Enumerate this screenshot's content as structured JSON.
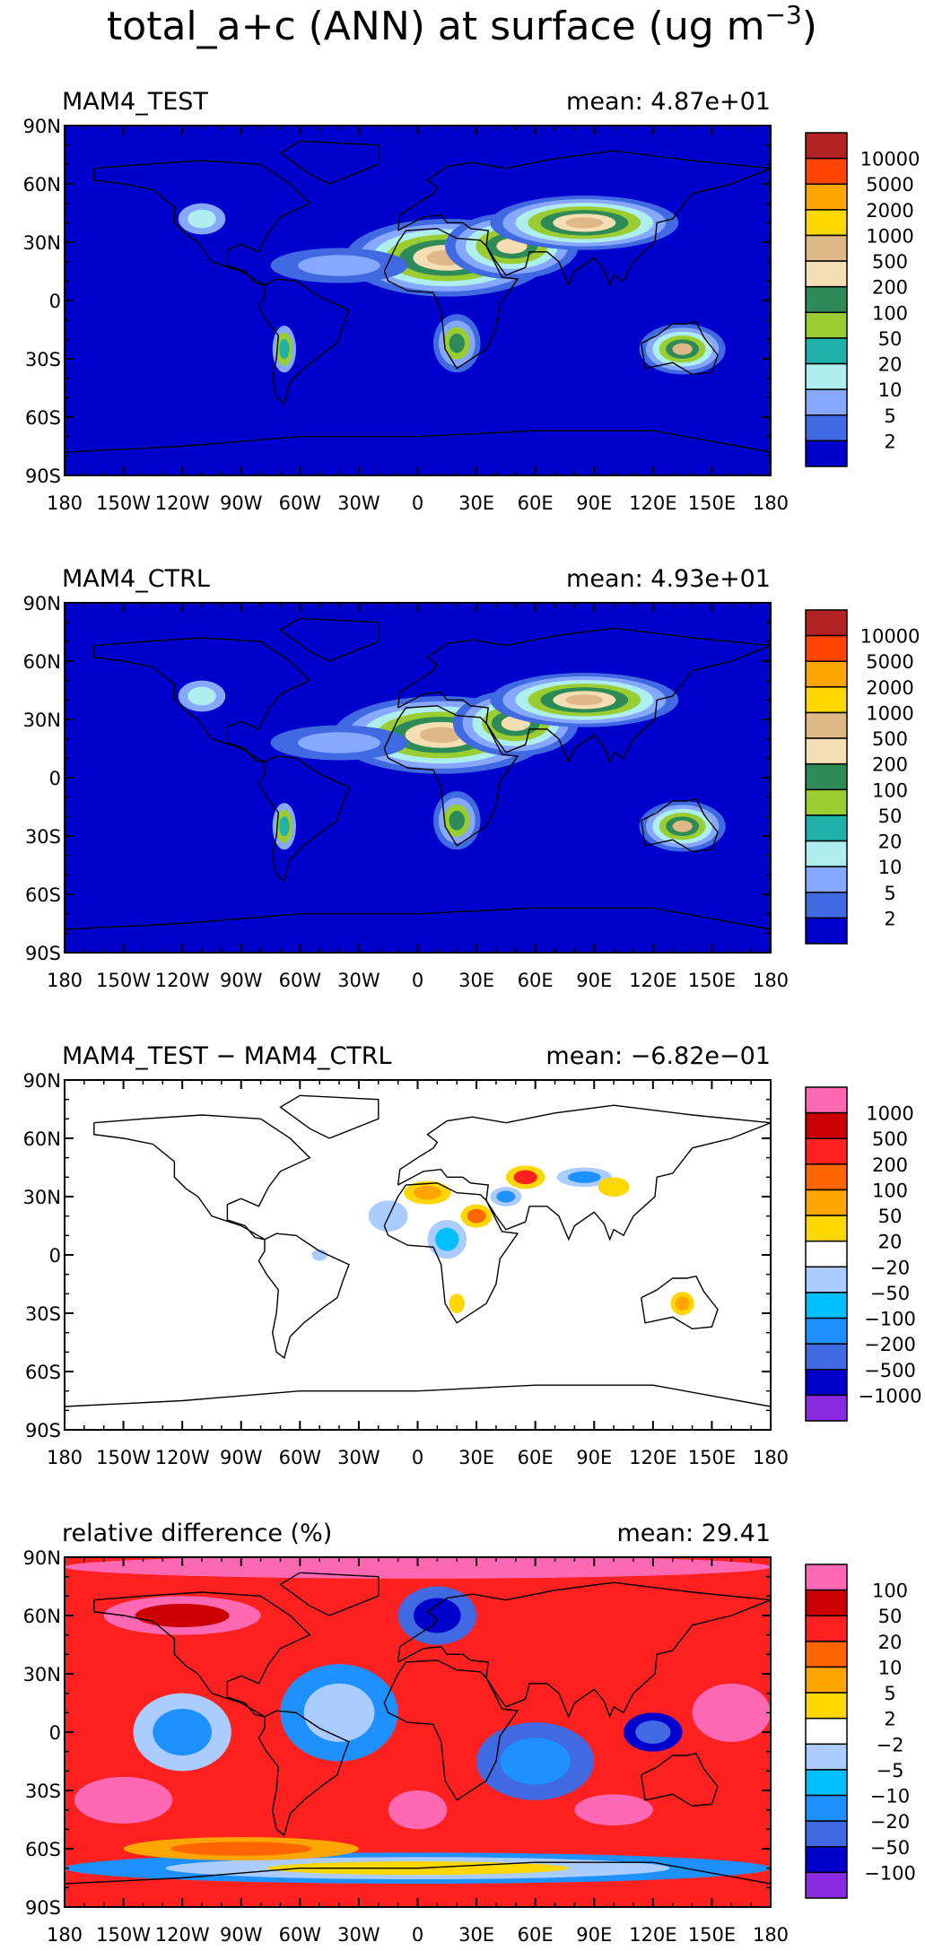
{
  "figure": {
    "title_main": "total_a+c (ANN) at surface (ug m",
    "title_sup": "−3",
    "title_close": ")"
  },
  "lat_ticks": [
    "90N",
    "60N",
    "30N",
    "0",
    "30S",
    "60S",
    "90S"
  ],
  "lon_ticks": [
    "180",
    "150W",
    "120W",
    "90W",
    "60W",
    "30W",
    "0",
    "30E",
    "60E",
    "90E",
    "120E",
    "150E",
    "180"
  ],
  "chart_data": [
    {
      "type": "heatmap",
      "name": "MAM4_TEST",
      "title": "MAM4_TEST",
      "mean_text": "mean: 4.87e+01",
      "xlim": [
        -180,
        180
      ],
      "ylim": [
        -90,
        90
      ],
      "colorbar": {
        "labels": [
          "10000",
          "5000",
          "2000",
          "1000",
          "500",
          "200",
          "100",
          "50",
          "20",
          "10",
          "5",
          "2"
        ],
        "colors": [
          "#b22222",
          "#ff4500",
          "#ffa500",
          "#ffd700",
          "#deb887",
          "#f5deb3",
          "#2e8b57",
          "#9acd32",
          "#20b2aa",
          "#afeeee",
          "#87a8ff",
          "#4169e1",
          "#0000cd"
        ]
      },
      "background": "#0000cd",
      "blobs": [
        {
          "lon": 15,
          "lat": 22,
          "rx": 52,
          "ry": 20,
          "colors": [
            "#4169e1",
            "#87a8ff",
            "#afeeee",
            "#9acd32",
            "#2e8b57",
            "#f5deb3",
            "#deb887"
          ]
        },
        {
          "lon": 48,
          "lat": 28,
          "rx": 34,
          "ry": 17,
          "colors": [
            "#4169e1",
            "#87a8ff",
            "#afeeee",
            "#9acd32",
            "#2e8b57",
            "#f5deb3"
          ]
        },
        {
          "lon": 85,
          "lat": 40,
          "rx": 48,
          "ry": 14,
          "colors": [
            "#4169e1",
            "#87a8ff",
            "#afeeee",
            "#9acd32",
            "#2e8b57",
            "#f5deb3",
            "#deb887"
          ]
        },
        {
          "lon": 135,
          "lat": -25,
          "rx": 22,
          "ry": 13,
          "colors": [
            "#4169e1",
            "#87a8ff",
            "#afeeee",
            "#9acd32",
            "#2e8b57",
            "#deb887"
          ]
        },
        {
          "lon": 20,
          "lat": -22,
          "rx": 12,
          "ry": 15,
          "colors": [
            "#4169e1",
            "#87a8ff",
            "#9acd32",
            "#2e8b57"
          ]
        },
        {
          "lon": -68,
          "lat": -25,
          "rx": 6,
          "ry": 12,
          "colors": [
            "#87a8ff",
            "#9acd32",
            "#20b2aa"
          ]
        },
        {
          "lon": -110,
          "lat": 42,
          "rx": 12,
          "ry": 8,
          "colors": [
            "#87a8ff",
            "#afeeee"
          ]
        },
        {
          "lon": -40,
          "lat": 18,
          "rx": 35,
          "ry": 9,
          "colors": [
            "#4169e1",
            "#87a8ff"
          ]
        }
      ]
    },
    {
      "type": "heatmap",
      "name": "MAM4_CTRL",
      "title": "MAM4_CTRL",
      "mean_text": "mean: 4.93e+01",
      "xlim": [
        -180,
        180
      ],
      "ylim": [
        -90,
        90
      ],
      "colorbar": {
        "labels": [
          "10000",
          "5000",
          "2000",
          "1000",
          "500",
          "200",
          "100",
          "50",
          "20",
          "10",
          "5",
          "2"
        ],
        "colors": [
          "#b22222",
          "#ff4500",
          "#ffa500",
          "#ffd700",
          "#deb887",
          "#f5deb3",
          "#2e8b57",
          "#9acd32",
          "#20b2aa",
          "#afeeee",
          "#87a8ff",
          "#4169e1",
          "#0000cd"
        ]
      },
      "background": "#0000cd",
      "blobs": [
        {
          "lon": 12,
          "lat": 22,
          "rx": 55,
          "ry": 20,
          "colors": [
            "#4169e1",
            "#87a8ff",
            "#afeeee",
            "#9acd32",
            "#2e8b57",
            "#f5deb3",
            "#deb887"
          ]
        },
        {
          "lon": 50,
          "lat": 28,
          "rx": 32,
          "ry": 17,
          "colors": [
            "#4169e1",
            "#87a8ff",
            "#afeeee",
            "#9acd32",
            "#2e8b57",
            "#f5deb3"
          ]
        },
        {
          "lon": 85,
          "lat": 40,
          "rx": 48,
          "ry": 14,
          "colors": [
            "#4169e1",
            "#87a8ff",
            "#afeeee",
            "#9acd32",
            "#2e8b57",
            "#f5deb3",
            "#deb887"
          ]
        },
        {
          "lon": 135,
          "lat": -25,
          "rx": 22,
          "ry": 13,
          "colors": [
            "#4169e1",
            "#87a8ff",
            "#afeeee",
            "#9acd32",
            "#2e8b57",
            "#deb887"
          ]
        },
        {
          "lon": 20,
          "lat": -22,
          "rx": 12,
          "ry": 15,
          "colors": [
            "#4169e1",
            "#87a8ff",
            "#9acd32",
            "#2e8b57"
          ]
        },
        {
          "lon": -68,
          "lat": -25,
          "rx": 6,
          "ry": 12,
          "colors": [
            "#87a8ff",
            "#9acd32",
            "#20b2aa"
          ]
        },
        {
          "lon": -110,
          "lat": 42,
          "rx": 12,
          "ry": 8,
          "colors": [
            "#87a8ff",
            "#afeeee"
          ]
        },
        {
          "lon": -40,
          "lat": 18,
          "rx": 35,
          "ry": 9,
          "colors": [
            "#4169e1",
            "#87a8ff"
          ]
        }
      ]
    },
    {
      "type": "heatmap",
      "name": "MAM4_TEST - MAM4_CTRL",
      "title": "MAM4_TEST − MAM4_CTRL",
      "mean_text": "mean: −6.82e−01",
      "xlim": [
        -180,
        180
      ],
      "ylim": [
        -90,
        90
      ],
      "colorbar": {
        "labels": [
          "1000",
          "500",
          "200",
          "100",
          "50",
          "20",
          "−20",
          "−50",
          "−100",
          "−200",
          "−500",
          "−1000"
        ],
        "colors": [
          "#ff69b4",
          "#cc0000",
          "#ff2020",
          "#ff6600",
          "#ffa500",
          "#ffd700",
          "#ffffff",
          "#aaccff",
          "#00bfff",
          "#1e90ff",
          "#4169e1",
          "#0000cd",
          "#8a2be2"
        ]
      },
      "background": "#ffffff",
      "blobs": [
        {
          "lon": -15,
          "lat": 20,
          "rx": 10,
          "ry": 8,
          "colors": [
            "#aaccff"
          ]
        },
        {
          "lon": 5,
          "lat": 32,
          "rx": 12,
          "ry": 6,
          "colors": [
            "#ffd700",
            "#ffa500"
          ]
        },
        {
          "lon": 15,
          "lat": 8,
          "rx": 10,
          "ry": 10,
          "colors": [
            "#aaccff",
            "#00bfff"
          ]
        },
        {
          "lon": 30,
          "lat": 20,
          "rx": 8,
          "ry": 6,
          "colors": [
            "#ffd700",
            "#ff6600"
          ]
        },
        {
          "lon": 45,
          "lat": 30,
          "rx": 8,
          "ry": 5,
          "colors": [
            "#aaccff",
            "#1e90ff"
          ]
        },
        {
          "lon": 55,
          "lat": 40,
          "rx": 10,
          "ry": 6,
          "colors": [
            "#ffd700",
            "#ff2020"
          ]
        },
        {
          "lon": 85,
          "lat": 40,
          "rx": 14,
          "ry": 5,
          "colors": [
            "#aaccff",
            "#1e90ff"
          ]
        },
        {
          "lon": 100,
          "lat": 35,
          "rx": 8,
          "ry": 5,
          "colors": [
            "#ffd700"
          ]
        },
        {
          "lon": 20,
          "lat": -25,
          "rx": 4,
          "ry": 5,
          "colors": [
            "#ffd700"
          ]
        },
        {
          "lon": 135,
          "lat": -25,
          "rx": 6,
          "ry": 6,
          "colors": [
            "#ffd700",
            "#ffa500"
          ]
        },
        {
          "lon": -50,
          "lat": 0,
          "rx": 4,
          "ry": 3,
          "colors": [
            "#aaccff"
          ]
        }
      ]
    },
    {
      "type": "heatmap",
      "name": "relative difference (%)",
      "title": "relative difference (%)",
      "mean_text": "mean: 29.41",
      "xlim": [
        -180,
        180
      ],
      "ylim": [
        -90,
        90
      ],
      "colorbar": {
        "labels": [
          "100",
          "50",
          "20",
          "10",
          "5",
          "2",
          "−2",
          "−5",
          "−10",
          "−20",
          "−50",
          "−100"
        ],
        "colors": [
          "#ff69b4",
          "#cc0000",
          "#ff2020",
          "#ff6600",
          "#ffa500",
          "#ffd700",
          "#ffffff",
          "#aaccff",
          "#00bfff",
          "#1e90ff",
          "#4169e1",
          "#0000cd",
          "#8a2be2"
        ]
      },
      "background": "#ff2020",
      "blobs": [
        {
          "lon": 0,
          "lat": 85,
          "rx": 180,
          "ry": 6,
          "colors": [
            "#ff69b4"
          ]
        },
        {
          "lon": -120,
          "lat": 60,
          "rx": 40,
          "ry": 10,
          "colors": [
            "#ff69b4",
            "#cc0000"
          ]
        },
        {
          "lon": 10,
          "lat": 60,
          "rx": 20,
          "ry": 15,
          "colors": [
            "#4169e1",
            "#0000cd"
          ]
        },
        {
          "lon": -40,
          "lat": 10,
          "rx": 30,
          "ry": 25,
          "colors": [
            "#1e90ff",
            "#aaccff"
          ]
        },
        {
          "lon": -120,
          "lat": 0,
          "rx": 25,
          "ry": 20,
          "colors": [
            "#aaccff",
            "#1e90ff"
          ]
        },
        {
          "lon": 60,
          "lat": -15,
          "rx": 30,
          "ry": 20,
          "colors": [
            "#4169e1",
            "#1e90ff"
          ]
        },
        {
          "lon": -150,
          "lat": -35,
          "rx": 25,
          "ry": 12,
          "colors": [
            "#ff69b4"
          ]
        },
        {
          "lon": 0,
          "lat": -40,
          "rx": 15,
          "ry": 10,
          "colors": [
            "#ff69b4"
          ]
        },
        {
          "lon": 100,
          "lat": -40,
          "rx": 20,
          "ry": 8,
          "colors": [
            "#ff69b4"
          ]
        },
        {
          "lon": 160,
          "lat": 10,
          "rx": 20,
          "ry": 15,
          "colors": [
            "#ff69b4"
          ]
        },
        {
          "lon": 0,
          "lat": -70,
          "rx": 180,
          "ry": 8,
          "colors": [
            "#1e90ff",
            "#aaccff",
            "#ffd700"
          ]
        },
        {
          "lon": 120,
          "lat": 0,
          "rx": 15,
          "ry": 10,
          "colors": [
            "#0000cd",
            "#4169e1"
          ]
        },
        {
          "lon": -90,
          "lat": -60,
          "rx": 60,
          "ry": 6,
          "colors": [
            "#ffa500",
            "#ff6600"
          ]
        }
      ]
    }
  ]
}
